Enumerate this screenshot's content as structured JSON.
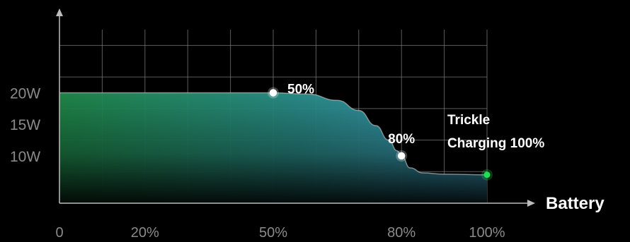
{
  "chart_data": {
    "type": "area",
    "title": "",
    "xlabel": "Battery",
    "ylabel": "",
    "xlim": [
      0,
      100
    ],
    "ylim": [
      2.5,
      30
    ],
    "grid": true,
    "legend": "none",
    "x_ticks": [
      {
        "value": 0,
        "label": "0"
      },
      {
        "value": 20,
        "label": "20%"
      },
      {
        "value": 50,
        "label": "50%"
      },
      {
        "value": 80,
        "label": "80%"
      },
      {
        "value": 100,
        "label": "100%"
      }
    ],
    "y_ticks": [
      {
        "value": 20,
        "label": "20W"
      },
      {
        "value": 15,
        "label": "15W"
      },
      {
        "value": 10,
        "label": "10W"
      }
    ],
    "series": [
      {
        "values": [
          [
            0,
            20
          ],
          [
            50,
            20
          ],
          [
            58,
            19.8
          ],
          [
            65,
            18.8
          ],
          [
            70,
            17.2
          ],
          [
            74,
            14.8
          ],
          [
            77,
            12.5
          ],
          [
            79,
            10.8
          ],
          [
            80,
            10.0
          ],
          [
            82,
            8.1
          ],
          [
            85,
            7.3
          ],
          [
            90,
            7.1
          ],
          [
            100,
            7.0
          ]
        ]
      }
    ],
    "markers": [
      {
        "x": 50,
        "y": 20,
        "label": "50%",
        "color": "#ffffff"
      },
      {
        "x": 80,
        "y": 10,
        "label": "80%",
        "color": "#ffffff"
      },
      {
        "x": 100,
        "y": 7,
        "label_lines": [
          "Trickle",
          "Charging 100%"
        ],
        "color": "#22dd55"
      }
    ],
    "colors": {
      "background": "#000000",
      "grid": "#7a7a7a",
      "axis": "#bdbdbd",
      "curve": "#d9d9d9",
      "fill_left": "#1f8a4a",
      "fill_right": "#3fa6c8"
    }
  }
}
